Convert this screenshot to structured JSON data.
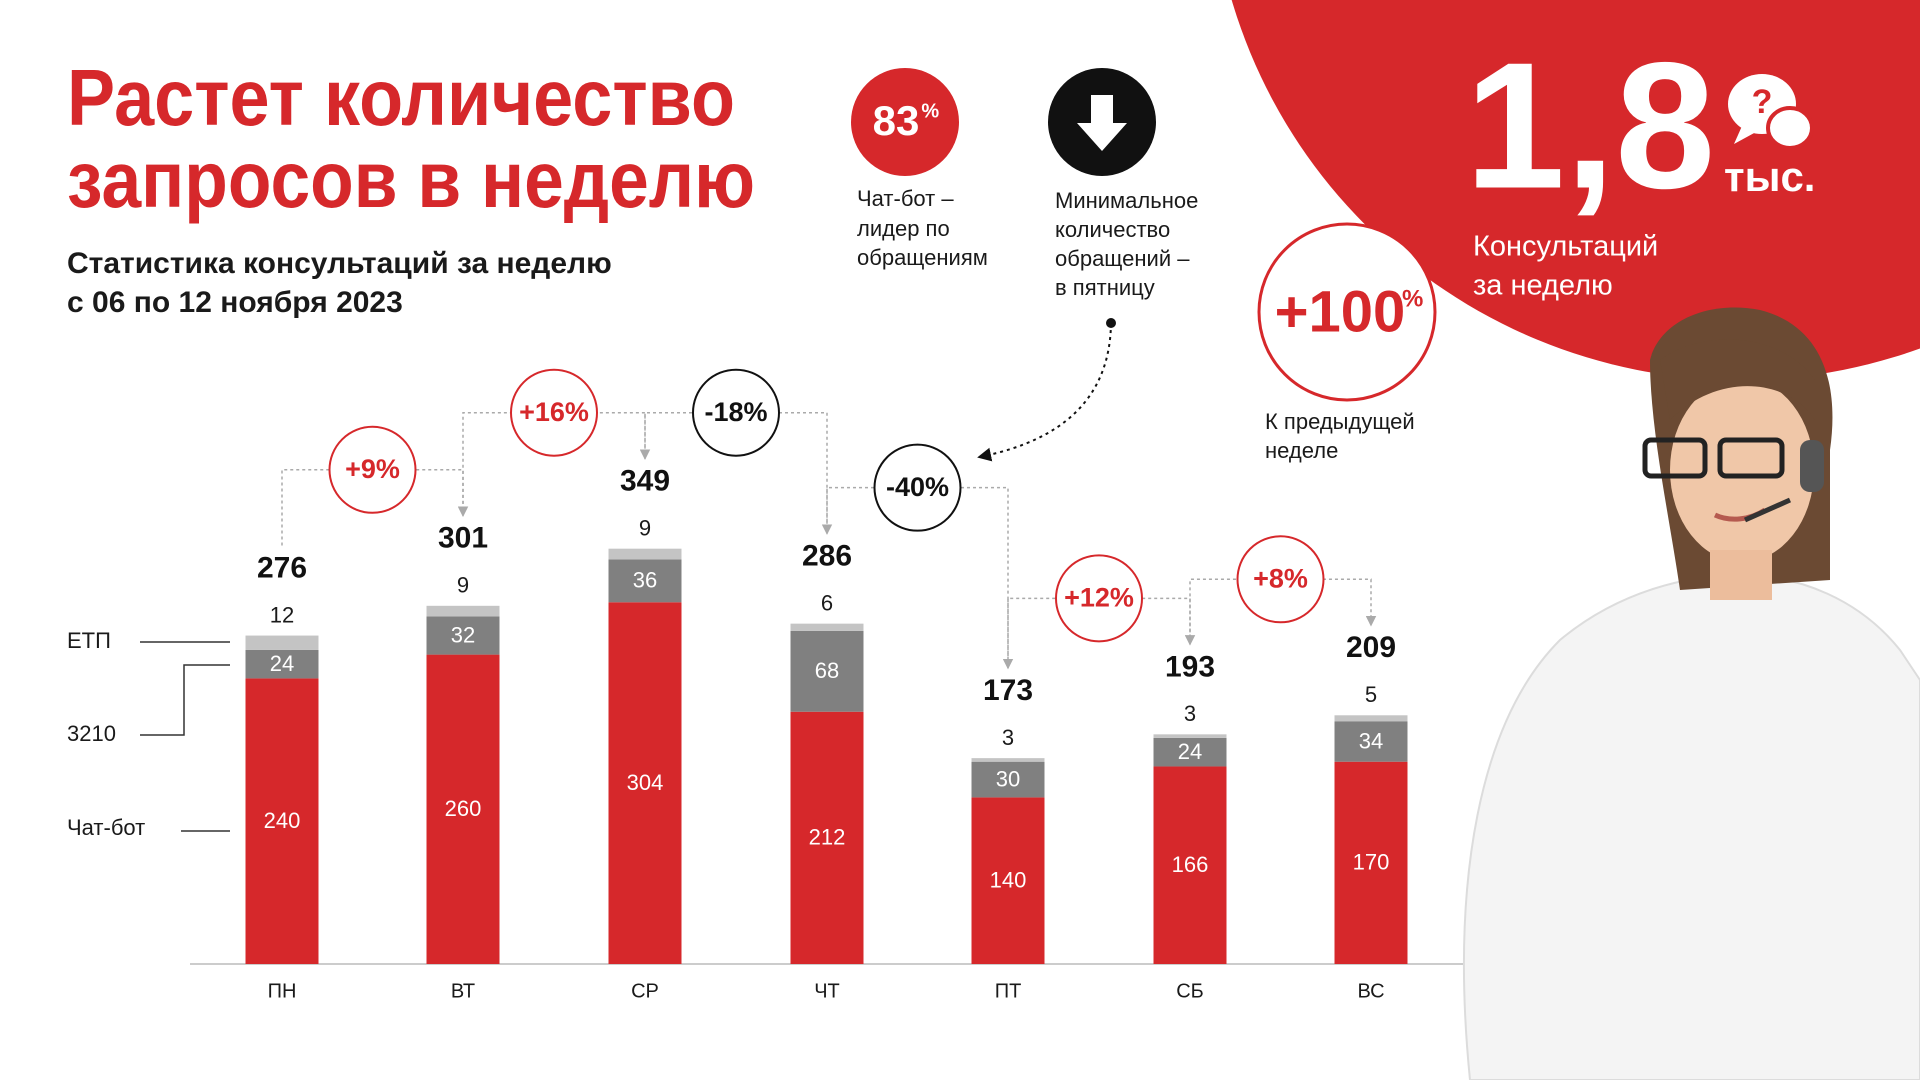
{
  "header": {
    "title": [
      "Растет количество",
      "запросов в неделю"
    ],
    "subtitle": [
      "Статистика консультаций за неделю",
      "с 06 по 12 ноября 2023"
    ]
  },
  "chart_data": {
    "type": "bar",
    "stacked": true,
    "categories": [
      "ПН",
      "ВТ",
      "СР",
      "ЧТ",
      "ПТ",
      "СБ",
      "ВС"
    ],
    "series": [
      {
        "name": "Чат-бот",
        "color": "#d6282b",
        "values": [
          240,
          260,
          304,
          212,
          140,
          166,
          170
        ]
      },
      {
        "name": "3210",
        "color": "#808080",
        "values": [
          24,
          32,
          36,
          68,
          30,
          24,
          34
        ]
      },
      {
        "name": "ЕТП",
        "color": "#c4c4c4",
        "values": [
          12,
          9,
          9,
          6,
          3,
          3,
          5
        ]
      }
    ],
    "totals": [
      276,
      301,
      349,
      286,
      173,
      193,
      209
    ],
    "changes": {
      "values": [
        9,
        16,
        -18,
        -40,
        12,
        8
      ],
      "value_labels": [
        "+9%",
        "+16%",
        "-18%",
        "-40%",
        "+12%",
        "+8%"
      ]
    }
  },
  "stats": {
    "chatbot_share": {
      "value": 83,
      "unit": "%",
      "caption": [
        "Чат-бот –",
        "лидер по",
        "обращениям"
      ]
    },
    "min_day": {
      "caption": [
        "Минимальное",
        "количество",
        "обращений –",
        "в пятницу"
      ]
    },
    "total": {
      "value": "1,8",
      "unit": "тыс.",
      "caption": [
        "Консультаций",
        "за неделю"
      ]
    },
    "growth": {
      "value": "+100",
      "unit": "%",
      "caption": [
        "К предыдущей",
        "неделе"
      ]
    }
  }
}
